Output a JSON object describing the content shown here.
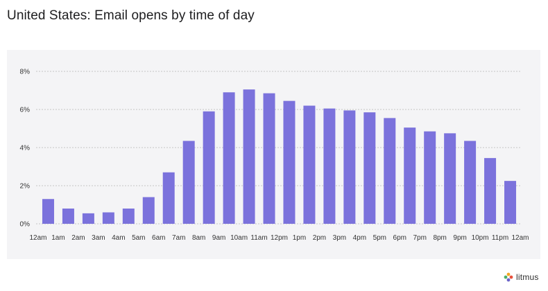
{
  "page": {
    "title": "United States: Email opens by time of day",
    "brand_name": "litmus"
  },
  "colors": {
    "bar": "#7b72dc",
    "panel_bg": "#f4f4f6",
    "grid": "#c4c4c4"
  },
  "chart_data": {
    "type": "bar",
    "title": "United States: Email opens by time of day",
    "xlabel": "",
    "ylabel": "",
    "y_unit": "%",
    "ylim": [
      0,
      8
    ],
    "y_ticks": [
      0,
      2,
      4,
      6,
      8
    ],
    "y_tick_labels": [
      "0%",
      "2%",
      "4%",
      "6%",
      "8%"
    ],
    "grid": true,
    "x_tick_labels": [
      "12am",
      "1am",
      "2am",
      "3am",
      "4am",
      "5am",
      "6am",
      "7am",
      "8am",
      "9am",
      "10am",
      "11am",
      "12pm",
      "1pm",
      "2pm",
      "3pm",
      "4pm",
      "5pm",
      "6pm",
      "7pm",
      "8pm",
      "9pm",
      "10pm",
      "11pm",
      "12am"
    ],
    "values": [
      1.3,
      0.8,
      0.55,
      0.6,
      0.8,
      1.4,
      2.7,
      4.35,
      5.9,
      6.9,
      7.05,
      6.85,
      6.45,
      6.2,
      6.05,
      5.95,
      5.85,
      5.55,
      5.05,
      4.85,
      4.75,
      4.35,
      3.45,
      2.25
    ]
  }
}
